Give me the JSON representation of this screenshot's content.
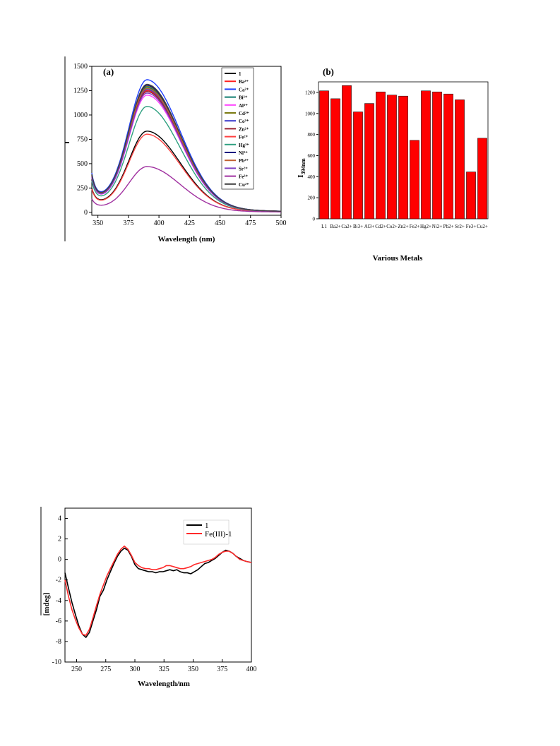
{
  "chart_data": [
    {
      "type": "line",
      "panel_label": "(a)",
      "xlabel": "Wavelength (nm)",
      "ylabel": "",
      "xlim": [
        345,
        500
      ],
      "ylim": [
        -30,
        1500
      ],
      "xticks": [
        350,
        375,
        400,
        425,
        450,
        475,
        500
      ],
      "yticks": [
        0,
        250,
        500,
        750,
        1000,
        1250,
        1500
      ],
      "legend_position": "top-right",
      "series": [
        {
          "name": "1",
          "color": "#000000",
          "peak": 790
        },
        {
          "name": "Ba²⁺",
          "color": "#ff2020",
          "peak": 1185
        },
        {
          "name": "Ca²⁺",
          "color": "#1f3fff",
          "peak": 1290
        },
        {
          "name": "Bi³⁺",
          "color": "#0c7a6e",
          "peak": 1215
        },
        {
          "name": "Al³⁺",
          "color": "#ff40ff",
          "peak": 1140
        },
        {
          "name": "Cd²⁺",
          "color": "#7a7a10",
          "peak": 1225
        },
        {
          "name": "Co²⁺",
          "color": "#3a3acc",
          "peak": 1195
        },
        {
          "name": "Zn²⁺",
          "color": "#9a2030",
          "peak": 1175
        },
        {
          "name": "Fe²⁺",
          "color": "#ff4040",
          "peak": 760
        },
        {
          "name": "Hg²⁺",
          "color": "#2fa080",
          "peak": 1030
        },
        {
          "name": "Ni²⁺",
          "color": "#101080",
          "peak": 1235
        },
        {
          "name": "Pb²⁺",
          "color": "#c06030",
          "peak": 1205
        },
        {
          "name": "Sr²⁺",
          "color": "#8040c0",
          "peak": 1160
        },
        {
          "name": "Fe³⁺",
          "color": "#a030a0",
          "peak": 445
        },
        {
          "name": "Cu²⁺",
          "color": "#404040",
          "peak": 1245
        }
      ]
    },
    {
      "type": "bar",
      "panel_label": "(b)",
      "xlabel": "Various Metals",
      "ylabel": "I",
      "ylabel_sub": "394nm",
      "ylim": [
        0,
        1300
      ],
      "yticks": [
        0,
        200,
        400,
        600,
        800,
        1000,
        1200
      ],
      "bar_color": "#ff0000",
      "categories": [
        "L1",
        "Ba2+",
        "Ca2+",
        "Bi3+",
        "Al3+",
        "Cd2+",
        "Co2+",
        "Zn2+",
        "Fe2+",
        "Hg2+",
        "Ni2+",
        "Pb2+",
        "Sr2+",
        "Fe3+",
        "Cu2+"
      ],
      "values": [
        1215,
        1140,
        1265,
        1015,
        1095,
        1205,
        1175,
        1165,
        745,
        1215,
        1205,
        1185,
        1130,
        445,
        765
      ]
    },
    {
      "type": "line",
      "xlabel": "Wavelength/nm",
      "ylabel": "[mdeg]",
      "xlim": [
        240,
        400
      ],
      "ylim": [
        -10,
        5
      ],
      "xticks": [
        250,
        275,
        300,
        325,
        350,
        375,
        400
      ],
      "yticks": [
        -10,
        -8,
        -6,
        -4,
        -2,
        0,
        2,
        4
      ],
      "legend_position": "top-right",
      "series": [
        {
          "name": "1",
          "color": "#000000",
          "x": [
            240,
            243,
            246,
            249,
            252,
            255,
            258,
            261,
            264,
            267,
            270,
            273,
            276,
            279,
            282,
            285,
            288,
            291,
            294,
            297,
            300,
            303,
            306,
            309,
            312,
            315,
            318,
            321,
            324,
            327,
            330,
            333,
            336,
            339,
            342,
            345,
            348,
            351,
            354,
            357,
            360,
            363,
            366,
            369,
            372,
            375,
            378,
            381,
            384,
            387,
            390,
            393,
            396,
            400
          ],
          "y": [
            -1.3,
            -2.8,
            -4.2,
            -5.4,
            -6.5,
            -7.3,
            -7.6,
            -7.1,
            -6.0,
            -4.9,
            -3.6,
            -3.0,
            -2.0,
            -1.2,
            -0.4,
            0.3,
            0.8,
            1.1,
            0.9,
            0.3,
            -0.5,
            -0.9,
            -1.0,
            -1.1,
            -1.2,
            -1.2,
            -1.3,
            -1.2,
            -1.2,
            -1.1,
            -1.0,
            -1.1,
            -1.0,
            -1.2,
            -1.3,
            -1.3,
            -1.4,
            -1.2,
            -1.0,
            -0.7,
            -0.4,
            -0.3,
            -0.1,
            0.1,
            0.4,
            0.7,
            0.9,
            0.8,
            0.6,
            0.3,
            0.1,
            -0.1,
            -0.2,
            -0.3
          ]
        },
        {
          "name": "Fe(III)-1",
          "color": "#ff2a2a",
          "x": [
            240,
            243,
            246,
            249,
            252,
            255,
            258,
            261,
            264,
            267,
            270,
            273,
            276,
            279,
            282,
            285,
            288,
            291,
            294,
            297,
            300,
            303,
            306,
            309,
            312,
            315,
            318,
            321,
            324,
            327,
            330,
            333,
            336,
            339,
            342,
            345,
            348,
            351,
            354,
            357,
            360,
            363,
            366,
            369,
            372,
            375,
            378,
            381,
            384,
            387,
            390,
            393,
            396,
            400
          ],
          "y": [
            -2.0,
            -3.6,
            -4.9,
            -5.9,
            -6.7,
            -7.3,
            -7.4,
            -6.8,
            -5.7,
            -4.5,
            -3.4,
            -2.5,
            -1.6,
            -0.9,
            -0.2,
            0.5,
            1.0,
            1.3,
            1.0,
            0.4,
            -0.3,
            -0.6,
            -0.8,
            -0.9,
            -0.9,
            -1.0,
            -1.0,
            -0.9,
            -0.8,
            -0.6,
            -0.6,
            -0.7,
            -0.8,
            -0.9,
            -0.9,
            -0.8,
            -0.7,
            -0.5,
            -0.4,
            -0.3,
            -0.2,
            -0.1,
            0.0,
            0.2,
            0.5,
            0.7,
            0.8,
            0.8,
            0.6,
            0.3,
            0.0,
            -0.1,
            -0.2,
            -0.3
          ]
        }
      ]
    }
  ]
}
